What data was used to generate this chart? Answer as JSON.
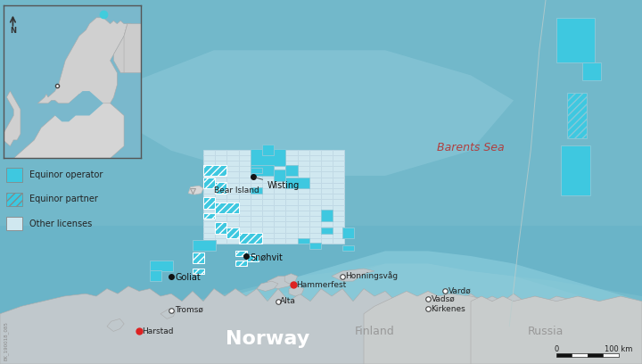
{
  "bg_ocean": "#6ab4c8",
  "bg_shelf_light": "#8ecfdf",
  "bg_shelf_mid": "#7ac4d4",
  "land_norway": "#c0c8cc",
  "land_finland_russia": "#c8cccc",
  "op_color": "#3ec8e0",
  "partner_color": "#3ec8e0",
  "other_color": "#d0e8f0",
  "license_ec": "#c8e0e8",
  "eez_color": "#aacccc",
  "text_barents": "#b04040",
  "inset_bg": "#7ab8cc",
  "inset_land": "#d0d0d0",
  "inset_sea": "#8cc0d4",
  "legend_labels": [
    "Equinor operator",
    "Equinor partner",
    "Other licenses"
  ],
  "scalebar_km": "100 km"
}
